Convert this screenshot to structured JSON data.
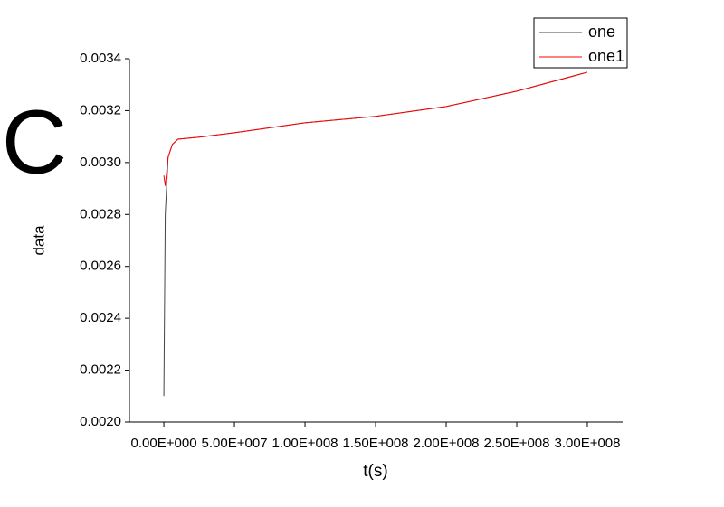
{
  "chart_data": {
    "type": "line",
    "annotation": "C",
    "xlabel": "t(s)",
    "ylabel": "data",
    "x_axis": "numeric",
    "xlim": [
      -24400000,
      325000000
    ],
    "ylim": [
      0.002,
      0.0034
    ],
    "xticks": [
      {
        "value": 0,
        "label": "0.00E+000"
      },
      {
        "value": 50000000,
        "label": "5.00E+007"
      },
      {
        "value": 100000000,
        "label": "1.00E+008"
      },
      {
        "value": 150000000,
        "label": "1.50E+008"
      },
      {
        "value": 200000000,
        "label": "2.00E+008"
      },
      {
        "value": 250000000,
        "label": "2.50E+008"
      },
      {
        "value": 300000000,
        "label": "3.00E+008"
      }
    ],
    "yticks": [
      {
        "value": 0.002,
        "label": "0.0020"
      },
      {
        "value": 0.0022,
        "label": "0.0022"
      },
      {
        "value": 0.0024,
        "label": "0.0024"
      },
      {
        "value": 0.0026,
        "label": "0.0026"
      },
      {
        "value": 0.0028,
        "label": "0.0028"
      },
      {
        "value": 0.003,
        "label": "0.0030"
      },
      {
        "value": 0.0032,
        "label": "0.0032"
      },
      {
        "value": 0.0034,
        "label": "0.0034"
      }
    ],
    "legend": "top-right",
    "series": [
      {
        "name": "one",
        "color": "#444444",
        "x": [
          0,
          1000000,
          3000000,
          6000000,
          10000000,
          25000000,
          50000000,
          100000000,
          150000000,
          200000000,
          250000000,
          300000000
        ],
        "values": [
          0.0021,
          0.0028,
          0.00302,
          0.00307,
          0.00309,
          0.003098,
          0.003115,
          0.003153,
          0.003178,
          0.003216,
          0.003275,
          0.003348
        ]
      },
      {
        "name": "one1",
        "color": "#ff0000",
        "x": [
          0,
          1000000,
          3000000,
          6000000,
          10000000,
          25000000,
          50000000,
          100000000,
          150000000,
          200000000,
          250000000,
          300000000
        ],
        "values": [
          0.00295,
          0.00291,
          0.00302,
          0.00307,
          0.00309,
          0.003098,
          0.003115,
          0.003153,
          0.003178,
          0.003216,
          0.003275,
          0.003348
        ]
      }
    ]
  }
}
